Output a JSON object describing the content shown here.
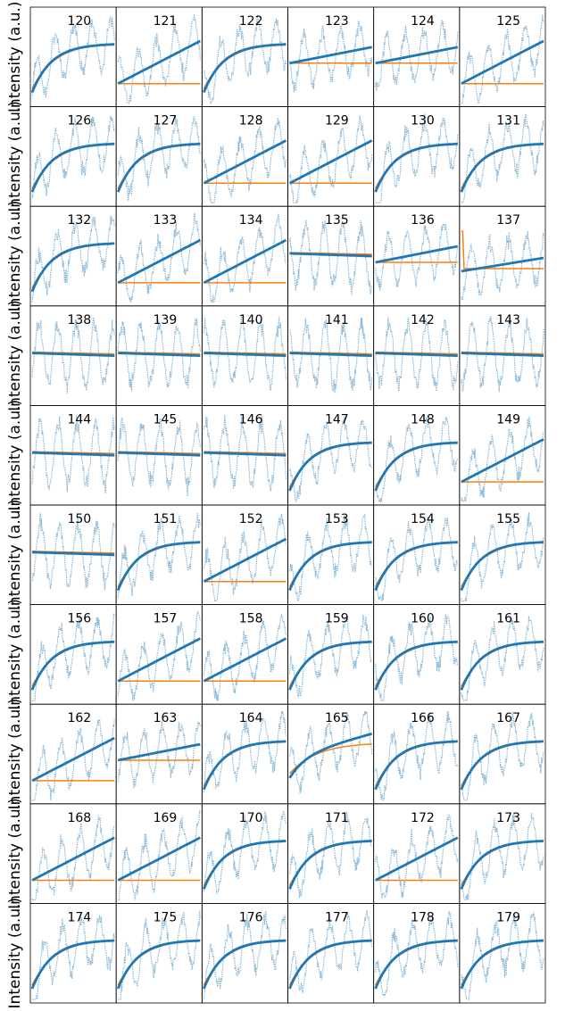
{
  "chart_data": {
    "type": "scatter",
    "grid": {
      "rows": 10,
      "cols": 6
    },
    "ylabel": "Intensity (a.u.)",
    "panel_titles": [
      "120",
      "121",
      "122",
      "123",
      "124",
      "125",
      "126",
      "127",
      "128",
      "129",
      "130",
      "131",
      "132",
      "133",
      "134",
      "135",
      "136",
      "137",
      "138",
      "139",
      "140",
      "141",
      "142",
      "143",
      "144",
      "145",
      "146",
      "147",
      "148",
      "149",
      "150",
      "151",
      "152",
      "153",
      "154",
      "155",
      "156",
      "157",
      "158",
      "159",
      "160",
      "161",
      "162",
      "163",
      "164",
      "165",
      "166",
      "167",
      "168",
      "169",
      "170",
      "171",
      "172",
      "173",
      "174",
      "175",
      "176",
      "177",
      "178",
      "179"
    ],
    "panel_shapes": [
      "sat",
      "lin_flat",
      "sat",
      "flat_lin",
      "flat_lin",
      "lin_flat",
      "sat",
      "sat",
      "lin_flat",
      "lin_flat",
      "sat",
      "sat",
      "sat",
      "lin_flat",
      "lin_flat",
      "flat",
      "flat_lin",
      "drop_lin",
      "flat",
      "flat",
      "flat",
      "flat",
      "flat",
      "flat",
      "flat",
      "flat",
      "flat",
      "sat",
      "sat",
      "lin_flat",
      "flat",
      "sat",
      "lin_flat",
      "sat",
      "sat",
      "sat",
      "sat",
      "lin_flat",
      "lin_flat",
      "sat",
      "sat",
      "sat",
      "lin_flat",
      "flat_lin",
      "sat",
      "sat_lin",
      "sat",
      "sat",
      "lin_flat",
      "lin_flat",
      "sat",
      "sat",
      "lin_flat",
      "sat",
      "sat",
      "sat",
      "sat",
      "sat",
      "sat",
      "sat"
    ],
    "series_colors": {
      "data": "#1f77b4",
      "fit_model_1": "#1f77b4",
      "fit_model_2": "#ff7f0e"
    }
  }
}
